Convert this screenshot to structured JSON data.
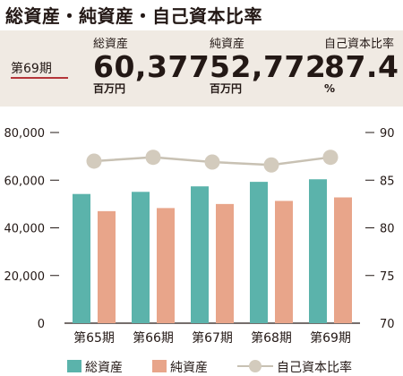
{
  "title": "総資産・純資産・自己資本比率",
  "summary": {
    "period": "第69期",
    "metrics": [
      {
        "label": "総資産",
        "value": "60,377",
        "unit": "百万円"
      },
      {
        "label": "純資産",
        "value": "52,772",
        "unit": "百万円"
      },
      {
        "label": "自己資本比率",
        "value": "87.4",
        "unit": "%"
      }
    ]
  },
  "colors": {
    "total_assets": "#5bb3ab",
    "net_assets": "#e8a58a",
    "ratio_line": "#c8c1b3",
    "ratio_marker": "#d3cbbd",
    "summary_bg": "#f0eae3",
    "accent_underline": "#b5363a"
  },
  "chart_data": {
    "type": "bar",
    "categories": [
      "第65期",
      "第66期",
      "第67期",
      "第68期",
      "第69期"
    ],
    "series": [
      {
        "name": "総資産",
        "kind": "bar",
        "axis": "left",
        "values": [
          54200,
          55100,
          57400,
          59300,
          60377
        ]
      },
      {
        "name": "純資産",
        "kind": "bar",
        "axis": "left",
        "values": [
          47000,
          48300,
          50000,
          51300,
          52772
        ]
      },
      {
        "name": "自己資本比率",
        "kind": "line",
        "axis": "right",
        "values": [
          87.0,
          87.4,
          86.9,
          86.6,
          87.4
        ]
      }
    ],
    "y_left": {
      "min": 0,
      "max": 80000,
      "ticks": [
        "0",
        "20,000",
        "40,000",
        "60,000",
        "80,000"
      ],
      "tick_values": [
        0,
        20000,
        40000,
        60000,
        80000
      ]
    },
    "y_right": {
      "min": 70,
      "max": 90,
      "ticks": [
        "70",
        "75",
        "80",
        "85",
        "90"
      ],
      "tick_values": [
        70,
        75,
        80,
        85,
        90
      ]
    },
    "grid": false,
    "legend": {
      "position": "bottom",
      "items": [
        "総資産",
        "純資産",
        "自己資本比率"
      ]
    }
  }
}
